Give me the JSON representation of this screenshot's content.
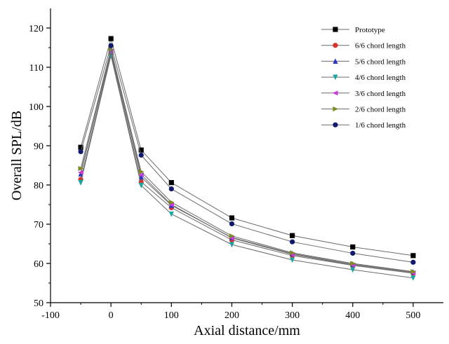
{
  "chart_data": {
    "type": "line",
    "xlabel": "Axial distance/mm",
    "ylabel": "Overall SPL/dB",
    "xlim": [
      -100,
      550
    ],
    "ylim": [
      50,
      125
    ],
    "xticks": [
      -100,
      0,
      100,
      200,
      300,
      400,
      500
    ],
    "yticks": [
      50,
      60,
      70,
      80,
      90,
      100,
      110,
      120
    ],
    "grid": false,
    "legend": "top-right",
    "x": [
      -50,
      0,
      50,
      100,
      200,
      300,
      400,
      500
    ],
    "series": [
      {
        "name": "Prototype",
        "color": "#000000",
        "marker": "square",
        "values": [
          89.6,
          117.3,
          88.9,
          80.6,
          71.6,
          67.1,
          64.2,
          62.0
        ]
      },
      {
        "name": "6/6 chord length",
        "color": "#d9322b",
        "marker": "circle",
        "values": [
          81.4,
          113.5,
          80.8,
          74.2,
          66.0,
          62.0,
          59.5,
          57.5
        ]
      },
      {
        "name": "5/6 chord length",
        "color": "#2a35c8",
        "marker": "triangle-up",
        "values": [
          82.8,
          114.3,
          82.0,
          74.8,
          66.6,
          62.5,
          59.8,
          57.8
        ]
      },
      {
        "name": "4/6 chord length",
        "color": "#1aa5a5",
        "marker": "triangle-down",
        "values": [
          80.6,
          113.0,
          79.9,
          72.6,
          64.8,
          60.9,
          58.4,
          56.3
        ]
      },
      {
        "name": "3/6 chord length",
        "color": "#c93fd6",
        "marker": "triangle-left",
        "values": [
          83.2,
          113.9,
          82.6,
          75.0,
          66.5,
          62.3,
          59.6,
          57.6
        ]
      },
      {
        "name": "2/6 chord length",
        "color": "#7f8a22",
        "marker": "triangle-right",
        "values": [
          84.2,
          114.6,
          83.4,
          75.6,
          67.0,
          62.7,
          60.0,
          57.9
        ]
      },
      {
        "name": "1/6 chord length",
        "color": "#101a6e",
        "marker": "circle",
        "values": [
          88.5,
          115.5,
          87.6,
          79.0,
          70.1,
          65.5,
          62.6,
          60.3
        ]
      }
    ]
  }
}
